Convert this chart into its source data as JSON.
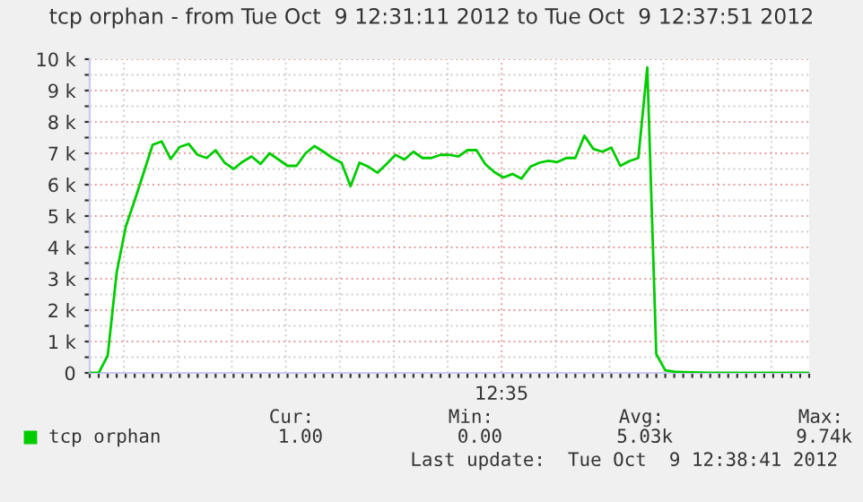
{
  "chart_data": {
    "type": "line",
    "title": "tcp orphan - from Tue Oct  9 12:31:11 2012 to Tue Oct  9 12:37:51 2012",
    "categories": [
      null,
      null,
      null,
      null,
      null,
      null,
      null,
      null,
      null,
      null,
      null,
      null,
      null,
      null,
      null,
      null,
      null,
      null,
      null,
      null,
      null,
      null,
      null,
      null,
      null,
      null,
      null,
      null,
      null,
      null,
      null,
      null,
      null,
      null,
      null,
      null,
      null,
      null,
      null,
      null,
      null,
      null,
      null,
      null,
      null,
      null,
      null,
      null,
      null,
      null,
      null,
      null,
      null,
      null,
      null,
      null,
      null,
      null,
      null,
      null,
      null,
      null,
      null,
      null,
      null,
      null,
      null,
      null,
      null,
      null,
      null,
      null,
      null,
      null,
      null,
      null,
      null,
      null,
      null,
      null,
      null
    ],
    "series": [
      {
        "name": "tcp orphan",
        "color": "#00cc00",
        "values": [
          0,
          0,
          550,
          3200,
          4650,
          5500,
          6380,
          7270,
          7380,
          6820,
          7200,
          7300,
          6950,
          6850,
          7100,
          6700,
          6500,
          6730,
          6900,
          6660,
          7000,
          6800,
          6600,
          6600,
          7000,
          7230,
          7050,
          6850,
          6700,
          5950,
          6700,
          6570,
          6380,
          6660,
          6950,
          6800,
          7050,
          6850,
          6850,
          6950,
          6950,
          6900,
          7100,
          7100,
          6650,
          6400,
          6230,
          6340,
          6190,
          6570,
          6700,
          6760,
          6720,
          6850,
          6850,
          7560,
          7140,
          7050,
          7180,
          6600,
          6750,
          6850,
          9740,
          600,
          80,
          40,
          25,
          15,
          10,
          0,
          0,
          0,
          0,
          0,
          0,
          0,
          0,
          0,
          0,
          0,
          0
        ]
      }
    ],
    "ylim": [
      0,
      10000
    ],
    "yticks": [
      {
        "value": 0,
        "label": "0"
      },
      {
        "value": 500,
        "label": null
      },
      {
        "value": 1000,
        "label": "1 k"
      },
      {
        "value": 1500,
        "label": null
      },
      {
        "value": 2000,
        "label": "2 k"
      },
      {
        "value": 2500,
        "label": null
      },
      {
        "value": 3000,
        "label": "3 k"
      },
      {
        "value": 3500,
        "label": null
      },
      {
        "value": 4000,
        "label": "4 k"
      },
      {
        "value": 4500,
        "label": null
      },
      {
        "value": 5000,
        "label": "5 k"
      },
      {
        "value": 5500,
        "label": null
      },
      {
        "value": 6000,
        "label": "6 k"
      },
      {
        "value": 6500,
        "label": null
      },
      {
        "value": 7000,
        "label": "7 k"
      },
      {
        "value": 7500,
        "label": null
      },
      {
        "value": 8000,
        "label": "8 k"
      },
      {
        "value": 8500,
        "label": null
      },
      {
        "value": 9000,
        "label": "9 k"
      },
      {
        "value": 9500,
        "label": null
      },
      {
        "value": 10000,
        "label": "10 k"
      }
    ],
    "grid": true,
    "legend": "bottom",
    "marker": "none",
    "line_style": "solid",
    "annotations": [
      "Cur:",
      "Min:",
      "Avg:",
      "Max:",
      "1.00",
      "0.00",
      "5.03k",
      "9.74k",
      "Last update:  Tue Oct  9 12:38:41 2012",
      "12:35"
    ]
  }
}
